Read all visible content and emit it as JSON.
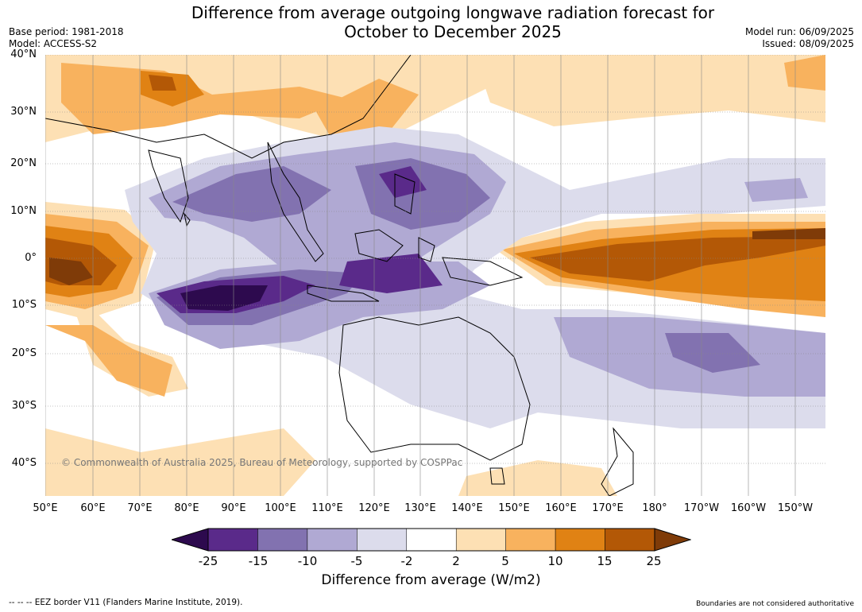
{
  "title": {
    "line1": "Difference from average outgoing longwave radiation forecast for",
    "line2": "October to December 2025"
  },
  "meta_left": {
    "base_period": "Base period: 1981-2018",
    "model": "Model: ACCESS-S2"
  },
  "meta_right": {
    "model_run": "Model run: 06/09/2025",
    "issued": "Issued: 08/09/2025"
  },
  "lat_labels": [
    "40°N",
    "30°N",
    "20°N",
    "10°N",
    "0°",
    "10°S",
    "20°S",
    "30°S",
    "40°S"
  ],
  "lon_labels": [
    "50°E",
    "60°E",
    "70°E",
    "80°E",
    "90°E",
    "100°E",
    "110°E",
    "120°E",
    "130°E",
    "140°E",
    "150°E",
    "160°E",
    "170°E",
    "180°",
    "170°W",
    "160°W",
    "150°W"
  ],
  "copyright": "© Commonwealth of Australia 2025, Bureau of Meteorology, supported by COSPPac",
  "colorbar": {
    "ticks": [
      "-25",
      "-15",
      "-10",
      "-5",
      "-2",
      "2",
      "5",
      "10",
      "15",
      "25"
    ],
    "colors": [
      "#2d0a4e",
      "#5a2a8a",
      "#8272b0",
      "#b0a9d3",
      "#dcdcec",
      "#ffffff",
      "#fde0b4",
      "#f8b25e",
      "#e08214",
      "#b35806",
      "#7f3b08"
    ],
    "title": "Difference from average (W/m2)"
  },
  "footer": {
    "eez": "--  --  -- EEZ border V11 (Flanders Marine Institute, 2019).",
    "disclaimer": "Boundaries are not considered authoritative"
  }
}
